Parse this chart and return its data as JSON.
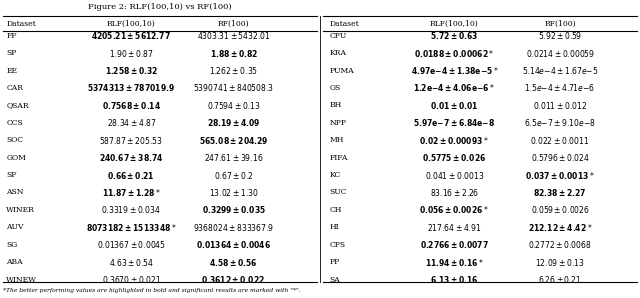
{
  "title": "Figure 2: RLF(100,10) vs RF(100)",
  "footnote": "*The better performing values are highlighted in bold and significant results are marked with \"*\".",
  "left_headers": [
    "Dataset",
    "RLF(100,10)",
    "RF(100)"
  ],
  "right_headers": [
    "Dataset",
    "RLF(100,10)",
    "RF(100)"
  ],
  "left_rows": [
    [
      "FF",
      "\\mathbf{4205.21 \\pm5612.77}",
      "4303.31\\pm5432.01"
    ],
    [
      "SP",
      "1.90\\pm0.87",
      "\\mathbf{1.88\\pm0.82}"
    ],
    [
      "EE",
      "\\mathbf{1.258\\pm0.32}",
      "1.262\\pm0.35"
    ],
    [
      "CAR",
      "\\mathbf{5374313 \\pm787019.9}",
      "5390741 \\pm840508.3"
    ],
    [
      "QSAR",
      "\\mathbf{0.7568\\pm0.14}",
      "0.7594\\pm0.13"
    ],
    [
      "CCS",
      "28.34\\pm4.87",
      "\\mathbf{28.19 \\pm4.09}"
    ],
    [
      "SOC",
      "587.87\\pm205.53",
      "\\mathbf{565.08 \\pm204.29}"
    ],
    [
      "GOM",
      "\\mathbf{240.67\\pm38.74}",
      "247.61\\pm39.16"
    ],
    [
      "SF",
      "\\mathbf{0.66\\pm0.21}",
      "0.67 \\pm0.2"
    ],
    [
      "ASN",
      "\\mathbf{11.87 \\pm1.28}*",
      "13.02\\pm1.30"
    ],
    [
      "WINER",
      "0.3319\\pm0.034",
      "\\mathbf{0.3299 \\pm0.035}"
    ],
    [
      "AUV",
      "\\mathbf{8073182\\pm1513348}*",
      "9368024\\pm833367.9"
    ],
    [
      "SG",
      "0.01367\\pm0.0045",
      "\\mathbf{0.01364\\pm0.0046}"
    ],
    [
      "ABA",
      "4.63 \\pm0.54",
      "\\mathbf{4.58\\pm0.56}"
    ],
    [
      "WINEW",
      "0.3670\\pm0.021",
      "\\mathbf{0.3612\\pm0.022}"
    ]
  ],
  "right_rows": [
    [
      "CPU",
      "\\mathbf{5.72\\pm0.63}",
      "5.92\\pm0.59"
    ],
    [
      "KRA",
      "\\mathbf{0.0188 \\pm0.00062}*",
      "0.0214 \\pm0.00059"
    ],
    [
      "PUMA",
      "\\mathbf{4.97e{-}4 \\pm1.38e{-}5}*",
      "5.14e{-}4\\pm1.67e{-}5"
    ],
    [
      "GS",
      "\\mathbf{1.2e{-}4 \\pm4.06e{-}6}*",
      "1.5e{-}4\\pm4.71e{-}6"
    ],
    [
      "BH",
      "\\mathbf{0.01 \\pm0.01}",
      "0.011\\pm0.012"
    ],
    [
      "NPP",
      "\\mathbf{5.97e{-}7\\pm6.84e{-}8}",
      "6.5e{-}7\\pm9.10e{-}8"
    ],
    [
      "MH",
      "\\mathbf{0.02\\pm0.00093}*",
      "0.022 \\pm0.0011"
    ],
    [
      "FIFA",
      "\\mathbf{0.5775\\pm0.026}",
      "0.5796\\pm0.024"
    ],
    [
      "KC",
      "0.041\\pm0.0013",
      "\\mathbf{0.037\\pm0.0013}*"
    ],
    [
      "SUC",
      "83.16\\pm2.26",
      "\\mathbf{82.38\\pm2.27}"
    ],
    [
      "CH",
      "\\mathbf{0.056\\pm0.0026}*",
      "0.059\\pm0.0026"
    ],
    [
      "HI",
      "217.64\\pm4.91",
      "\\mathbf{212.12\\pm4.42}*"
    ],
    [
      "CPS",
      "\\mathbf{0.2766\\pm0.0077}",
      "0.2772\\pm0.0068"
    ],
    [
      "PP",
      "\\mathbf{11.94\\pm0.16}*",
      "12.09\\pm0.13"
    ],
    [
      "SA",
      "\\mathbf{6.13\\pm0.16}",
      "6.26\\pm0.21"
    ]
  ]
}
